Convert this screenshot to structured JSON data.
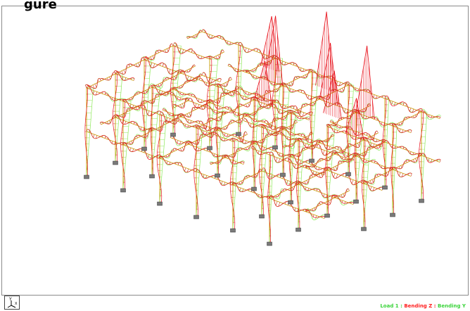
{
  "header": {
    "title": "gure"
  },
  "legend": {
    "load": "Load 1 :",
    "bending_z": "Bending Z :",
    "bending_y": "Bending Y"
  },
  "axis": {
    "y_label": "Y",
    "x_label": "X"
  },
  "colors": {
    "bending_z": "#e8141e",
    "bending_y": "#8ee85a",
    "frame_member": "#c8a000",
    "support": "#7a7a7a",
    "load": "#3bd43b"
  },
  "icons": [
    "axis-triad-icon",
    "support-icon"
  ]
}
